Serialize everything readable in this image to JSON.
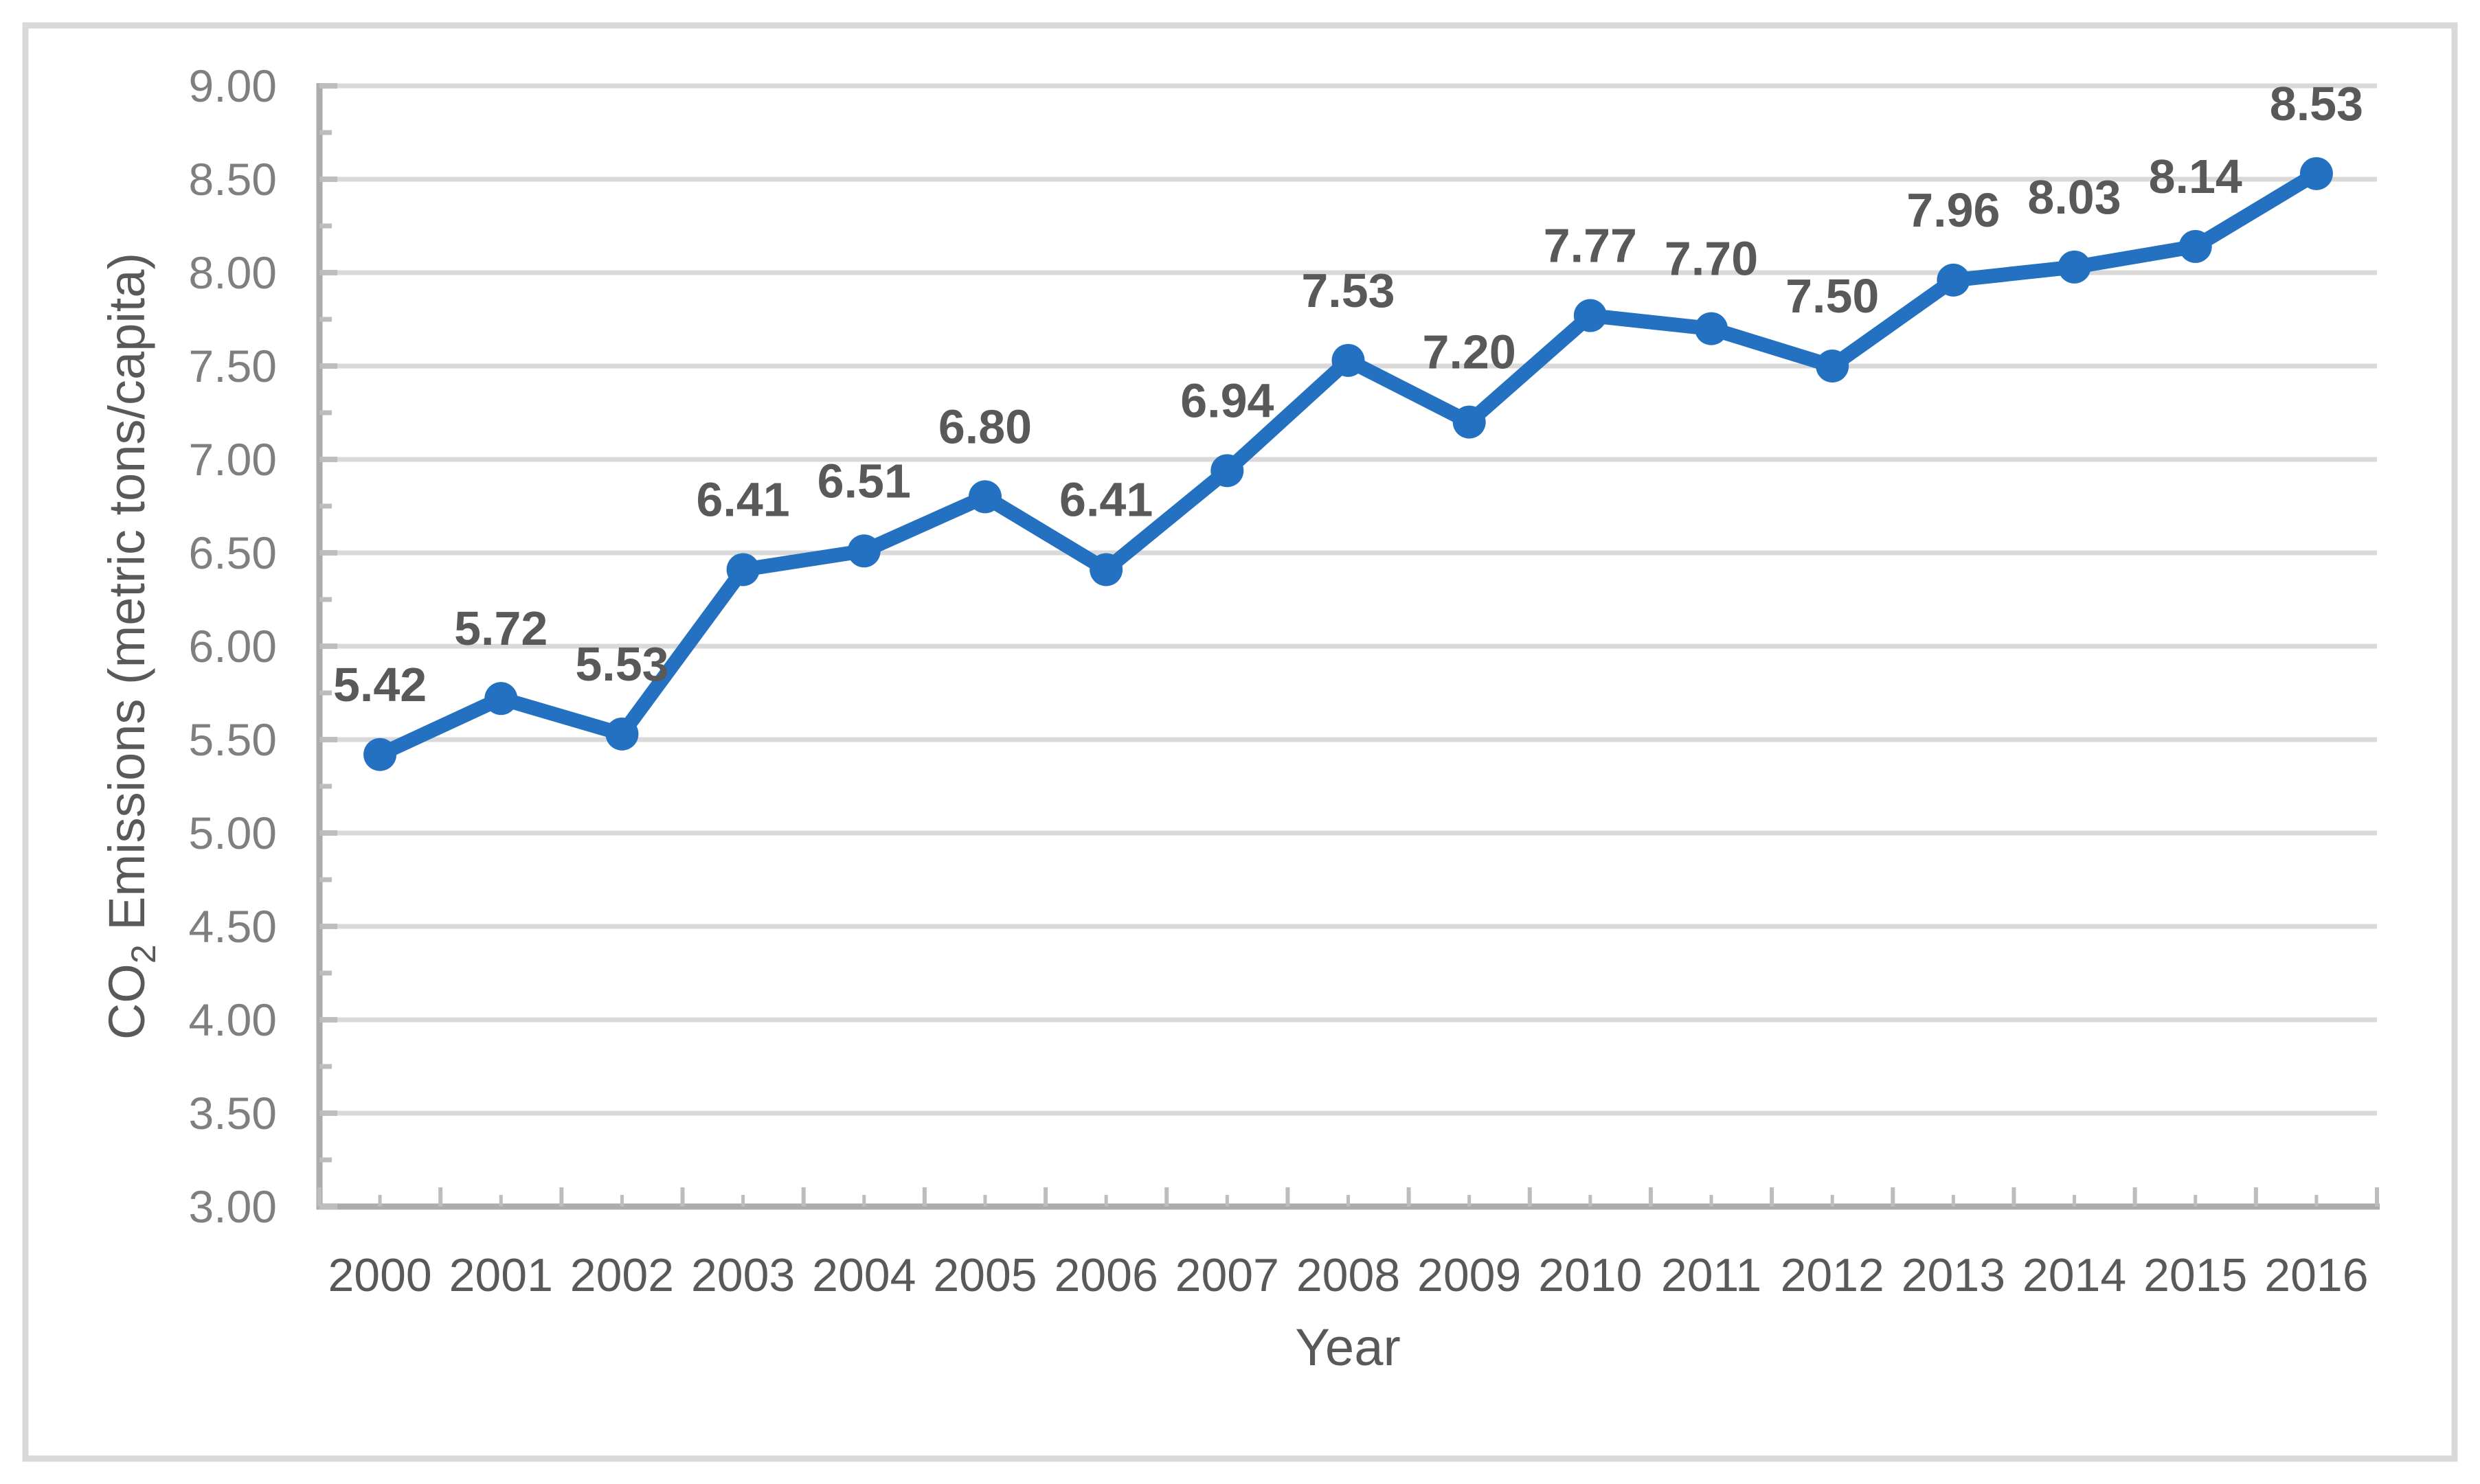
{
  "chart_data": {
    "type": "line",
    "title": "",
    "categories": [
      "2000",
      "2001",
      "2002",
      "2003",
      "2004",
      "2005",
      "2006",
      "2007",
      "2008",
      "2009",
      "2010",
      "2011",
      "2012",
      "2013",
      "2014",
      "2015",
      "2016"
    ],
    "values": [
      5.42,
      5.72,
      5.53,
      6.41,
      6.51,
      6.8,
      6.41,
      6.94,
      7.53,
      7.2,
      7.77,
      7.7,
      7.5,
      7.96,
      8.03,
      8.14,
      8.53
    ],
    "data_labels": [
      "5.42",
      "5.72",
      "5.53",
      "6.41",
      "6.51",
      "6.80",
      "6.41",
      "6.94",
      "7.53",
      "7.20",
      "7.77",
      "7.70",
      "7.50",
      "7.96",
      "8.03",
      "8.14",
      "8.53"
    ],
    "xlabel": "Year",
    "ylabel": "CO2 Emissions (metric tons/capita)",
    "ylabel_parts": {
      "prefix": "CO",
      "subscript": "2",
      "suffix": " Emissions (metric tons/capita)"
    },
    "y_axis": {
      "min": 3.0,
      "max": 9.0,
      "major_step": 0.5,
      "minor_step": 0.25,
      "tick_labels": [
        "9.00",
        "8.50",
        "8.00",
        "7.50",
        "7.00",
        "6.50",
        "6.00",
        "5.50",
        "5.00",
        "4.50",
        "4.00",
        "3.50",
        "3.00"
      ]
    },
    "grid": true,
    "legend_position": "none",
    "marker": "circle",
    "colors": {
      "line": "#2471C2",
      "marker": "#2471C2",
      "gridline": "#D9D9D9",
      "axis_line": "#ACACAC",
      "tick_mark": "#BDBDBD",
      "x_tick_label": "#595959",
      "y_tick_label": "#7F7F7F",
      "data_label": "#595959",
      "axis_title": "#595959",
      "frame_border": "#D9D9D9",
      "background": "#FFFFFF"
    }
  }
}
